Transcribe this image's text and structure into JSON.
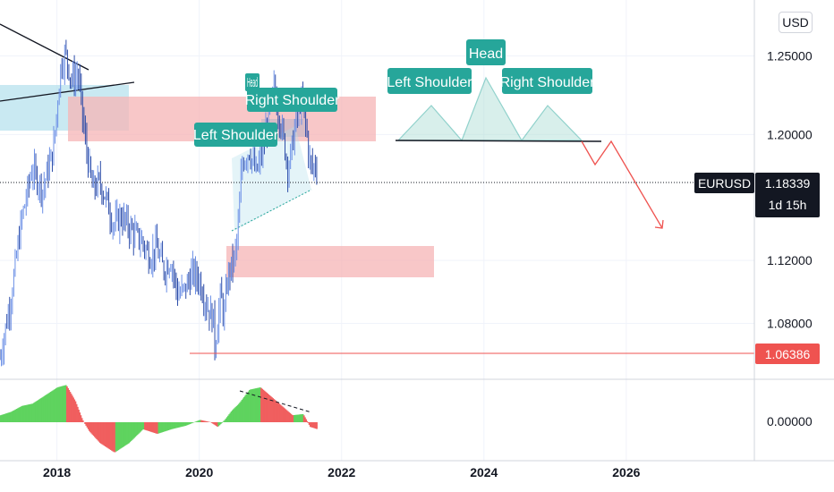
{
  "chart_data": {
    "type": "candlestick",
    "symbol": "EURUSD",
    "currency": "USD",
    "x_range": [
      2017.2,
      2027.8
    ],
    "y_range": [
      1.0445,
      1.2855
    ],
    "price_ticks": [
      "1.25000",
      "1.20000",
      "1.12000",
      "1.08000"
    ],
    "price_tick_values": [
      1.25,
      1.2,
      1.12,
      1.08
    ],
    "year_ticks": [
      2018,
      2020,
      2022,
      2024,
      2026
    ],
    "year_tick_labels": [
      "2018",
      "2020",
      "2022",
      "2024",
      "2026"
    ],
    "last_price": "1.18339",
    "last_price_value": 1.18339,
    "countdown": "1d 15h",
    "support_price": "1.06386",
    "support_price_value": 1.06386,
    "price_path": [
      [
        2017.2,
        1.058
      ],
      [
        2017.35,
        1.095
      ],
      [
        2017.5,
        1.145
      ],
      [
        2017.65,
        1.178
      ],
      [
        2017.8,
        1.165
      ],
      [
        2017.95,
        1.19
      ],
      [
        2018.05,
        1.242
      ],
      [
        2018.12,
        1.252
      ],
      [
        2018.2,
        1.235
      ],
      [
        2018.3,
        1.238
      ],
      [
        2018.4,
        1.195
      ],
      [
        2018.5,
        1.165
      ],
      [
        2018.6,
        1.17
      ],
      [
        2018.7,
        1.158
      ],
      [
        2018.8,
        1.142
      ],
      [
        2018.9,
        1.148
      ],
      [
        2019.0,
        1.142
      ],
      [
        2019.1,
        1.136
      ],
      [
        2019.2,
        1.132
      ],
      [
        2019.3,
        1.122
      ],
      [
        2019.4,
        1.128
      ],
      [
        2019.5,
        1.114
      ],
      [
        2019.6,
        1.12
      ],
      [
        2019.7,
        1.098
      ],
      [
        2019.8,
        1.102
      ],
      [
        2019.9,
        1.112
      ],
      [
        2020.0,
        1.108
      ],
      [
        2020.1,
        1.092
      ],
      [
        2020.2,
        1.082
      ],
      [
        2020.22,
        1.065
      ],
      [
        2020.3,
        1.098
      ],
      [
        2020.35,
        1.084
      ],
      [
        2020.4,
        1.11
      ],
      [
        2020.5,
        1.122
      ],
      [
        2020.55,
        1.142
      ],
      [
        2020.6,
        1.182
      ],
      [
        2020.7,
        1.19
      ],
      [
        2020.8,
        1.175
      ],
      [
        2020.9,
        1.192
      ],
      [
        2021.0,
        1.22
      ],
      [
        2021.05,
        1.228
      ],
      [
        2021.15,
        1.206
      ],
      [
        2021.25,
        1.178
      ],
      [
        2021.35,
        1.205
      ],
      [
        2021.42,
        1.222
      ],
      [
        2021.5,
        1.205
      ],
      [
        2021.55,
        1.183
      ],
      [
        2021.6,
        1.178
      ],
      [
        2021.65,
        1.183
      ]
    ],
    "oscillator": {
      "zero_label": "0.00000",
      "values": [
        [
          2017.2,
          0.06
        ],
        [
          2017.35,
          0.09
        ],
        [
          2017.5,
          0.14
        ],
        [
          2017.65,
          0.16
        ],
        [
          2017.8,
          0.22
        ],
        [
          2017.9,
          0.26
        ],
        [
          2018.0,
          0.3
        ],
        [
          2018.12,
          0.32
        ],
        [
          2018.25,
          0.18
        ],
        [
          2018.35,
          0.02
        ],
        [
          2018.45,
          -0.08
        ],
        [
          2018.6,
          -0.18
        ],
        [
          2018.8,
          -0.26
        ],
        [
          2019.0,
          -0.18
        ],
        [
          2019.2,
          -0.06
        ],
        [
          2019.4,
          -0.1
        ],
        [
          2019.6,
          -0.06
        ],
        [
          2019.8,
          -0.03
        ],
        [
          2020.0,
          0.02
        ],
        [
          2020.15,
          0.0
        ],
        [
          2020.25,
          -0.04
        ],
        [
          2020.35,
          0.02
        ],
        [
          2020.45,
          0.1
        ],
        [
          2020.55,
          0.16
        ],
        [
          2020.7,
          0.28
        ],
        [
          2020.85,
          0.3
        ],
        [
          2021.0,
          0.22
        ],
        [
          2021.15,
          0.14
        ],
        [
          2021.3,
          0.06
        ],
        [
          2021.45,
          0.07
        ],
        [
          2021.55,
          -0.04
        ],
        [
          2021.65,
          -0.06
        ]
      ]
    }
  },
  "annotations": {
    "left_shoulder": "Left Shoulder",
    "head": "Head",
    "right_shoulder": "Right Shoulder",
    "pattern_left_shoulder": "Left Shoulder",
    "pattern_head": "Head",
    "pattern_right_shoulder": "Right Shoulder"
  },
  "colors": {
    "up": "#26a69a",
    "down": "#ef5350",
    "candle": "#4a6fd6",
    "supply_zone": "#f6b4b6",
    "demand_zone": "#b2e0ec",
    "label_bg": "#26a69a",
    "forecast_arrow": "#ef5350",
    "support_line": "#ef5350",
    "price_badge": "#131722"
  }
}
